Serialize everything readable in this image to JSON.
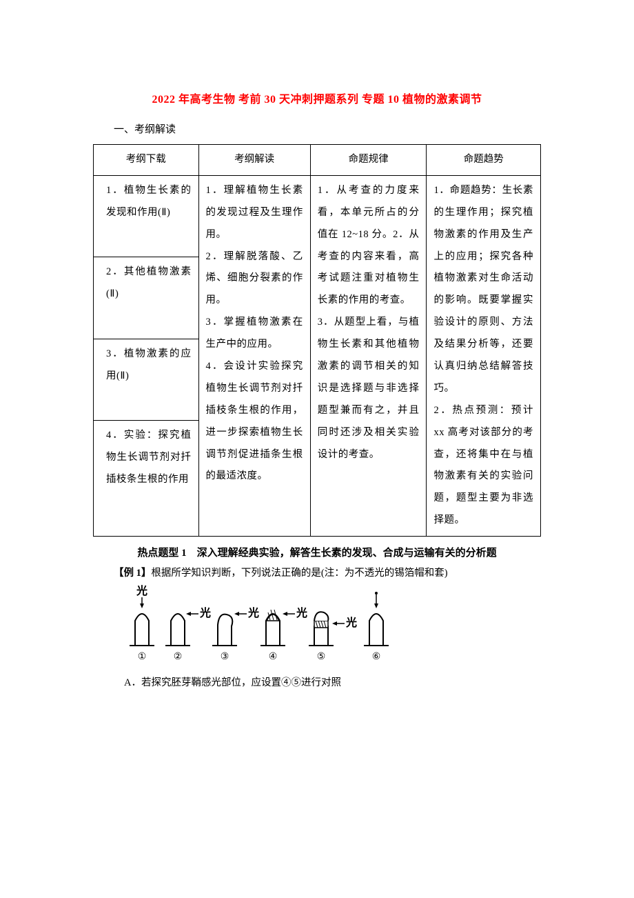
{
  "title": "2022 年高考生物 考前 30 天冲刺押题系列 专题 10 植物的激素调节",
  "section_heading": "一、考纲解读",
  "table": {
    "headers": [
      "考纲下载",
      "考纲解读",
      "命题规律",
      "命题趋势"
    ],
    "col1": [
      "1．植物生长素的发现和作用(Ⅱ)",
      "2．其他植物激素(Ⅱ)",
      "3．植物激素的应用(Ⅱ)",
      "4．实验：探究植物生长调节剂对扦插枝条生根的作用"
    ],
    "col2": "1．理解植物生长素的发现过程及生理作用。\n2．理解脱落酸、乙烯、细胞分裂素的作用。\n3．掌握植物激素在生产中的应用。\n4．会设计实验探究植物生长调节剂对扦插枝条生根的作用，进一步探索植物生长调节剂促进插条生根的最适浓度。",
    "col3": "1．从考查的力度来看，本单元所占的分值在 12~18 分。2．从考查的内容来看，高考试题注重对植物生长素的作用的考查。\n3．从题型上看，与植物生长素和其他植物激素的调节相关的知识是选择题与非选择题型兼而有之，并且同时还涉及相关实验设计的考查。",
    "col4": "1．命题趋势：生长素的生理作用；探究植物激素的作用及生产上的应用；探究各种植物激素对生命活动的影响。既要掌握实验设计的原则、方法及结果分析等，还要认真归纳总结解答技巧。\n2．热点预测：预计 xx 高考对该部分的考查，还将集中在与植物激素有关的实验问题，题型主要为非选择题。"
  },
  "hot_topic": "热点题型 1　深入理解经典实验，解答生长素的发现、合成与运输有关的分析题",
  "example": {
    "label": "【例 1】",
    "text": "根据所学知识判断，下列说法正确的是(注：为不透光的锡箔帽和套)"
  },
  "diagram": {
    "light_label": "光",
    "arrows_small": "←光",
    "labels": [
      "①",
      "②",
      "③",
      "④",
      "⑤",
      "⑥"
    ],
    "shape_fill": "#ffffff",
    "shape_stroke": "#000000",
    "hatch_fill": "#000000"
  },
  "choice_a": "A．若探究胚芽鞘感光部位，应设置④⑤进行对照"
}
